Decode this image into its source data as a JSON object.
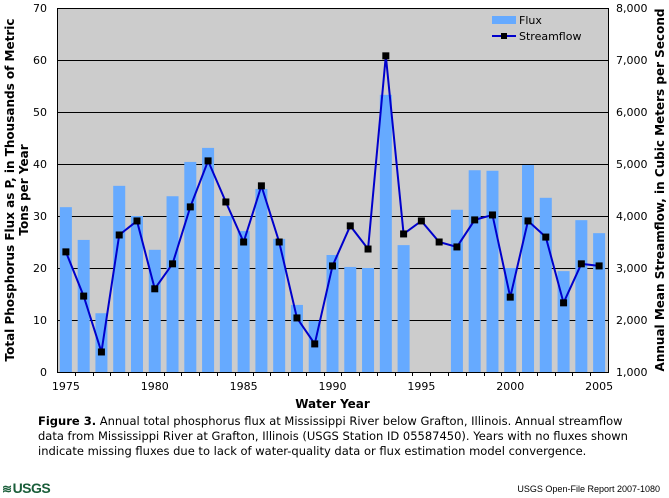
{
  "chart_data": {
    "type": "bar+line",
    "title": "",
    "xlabel": "Water Year",
    "ylabel_left": "Total Phosphorus Flux as P, in Thousands of Metric Tons per Year",
    "ylabel_right": "Annual Mean Streamflow, in Cubic Meters per Second",
    "ylim_left": [
      0,
      70
    ],
    "ylim_right": [
      1000,
      8000
    ],
    "yticks_left": [
      "0",
      "10",
      "20",
      "30",
      "40",
      "50",
      "60",
      "70"
    ],
    "yticks_right": [
      "1,000",
      "2,000",
      "3,000",
      "4,000",
      "5,000",
      "6,000",
      "7,000",
      "8,000"
    ],
    "xticks": [
      "1975",
      "1980",
      "1985",
      "1990",
      "1995",
      "2000",
      "2005"
    ],
    "grid": true,
    "legend_position": "top-right",
    "x": [
      1975,
      1976,
      1977,
      1978,
      1979,
      1980,
      1981,
      1982,
      1983,
      1984,
      1985,
      1986,
      1987,
      1988,
      1989,
      1990,
      1991,
      1992,
      1993,
      1994,
      1995,
      1996,
      1997,
      1998,
      1999,
      2000,
      2001,
      2002,
      2003,
      2004,
      2005
    ],
    "series": [
      {
        "name": "Flux",
        "type": "bar",
        "axis": "left",
        "color": "#66aaff",
        "values": [
          31.7,
          25.4,
          11.3,
          35.8,
          30.0,
          23.5,
          33.8,
          40.4,
          43.1,
          30.0,
          27.1,
          35.2,
          25.6,
          12.9,
          9.8,
          22.5,
          20.2,
          20.0,
          53.3,
          24.4,
          null,
          null,
          31.2,
          38.8,
          38.7,
          20.0,
          39.8,
          33.5,
          19.4,
          29.2,
          26.7
        ]
      },
      {
        "name": "Streamflow",
        "type": "line",
        "axis": "right",
        "color": "#0000cc",
        "marker_color": "#000000",
        "values": [
          3310,
          2460,
          1385,
          3635,
          3905,
          2600,
          3080,
          4175,
          5060,
          4270,
          3500,
          4580,
          3500,
          2040,
          1540,
          3040,
          3810,
          3365,
          7080,
          3655,
          3905,
          3500,
          3405,
          3925,
          4020,
          2440,
          3905,
          3595,
          2330,
          3080,
          3040
        ]
      }
    ]
  },
  "caption": {
    "label": "Figure 3.",
    "text": " Annual total phosphorus flux at Mississippi River below Grafton, Illinois. Annual streamflow data from Mississippi River at Grafton, Illinois (USGS Station ID 05587450). Years with no fluxes shown indicate missing fluxes due to lack of water-quality data or flux estimation model convergence."
  },
  "footer": {
    "logo": "USGS",
    "report": "USGS Open-File Report 2007-1080"
  }
}
